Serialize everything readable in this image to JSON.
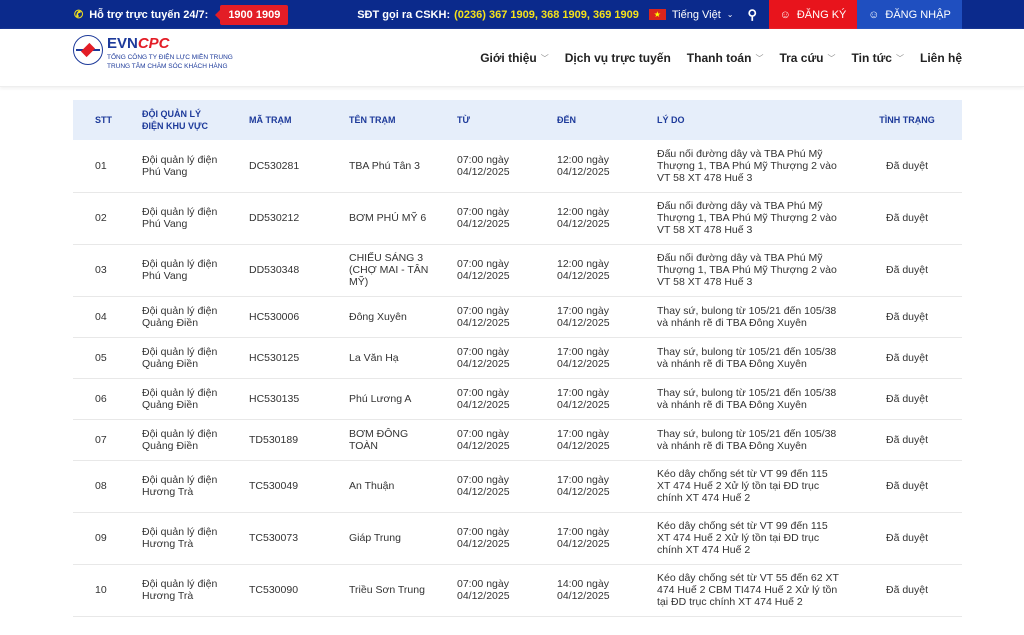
{
  "topbar": {
    "support_label": "Hỗ trợ trực tuyến 24/7:",
    "hotline": "1900 1909",
    "cskh_label": "SĐT gọi ra CSKH:",
    "cskh_numbers": "(0236) 367 1909, 368 1909, 369 1909",
    "language": "Tiếng Việt",
    "register": "ĐĂNG KÝ",
    "login": "ĐĂNG NHẬP"
  },
  "logo": {
    "brand": "EVN",
    "brand2": "CPC",
    "line1": "TỔNG CÔNG TY ĐIỆN LỰC MIỀN TRUNG",
    "line2": "TRUNG TÂM CHĂM SÓC KHÁCH HÀNG"
  },
  "nav": [
    {
      "label": "Giới thiệu",
      "dd": true
    },
    {
      "label": "Dịch vụ trực tuyến",
      "dd": false
    },
    {
      "label": "Thanh toán",
      "dd": true
    },
    {
      "label": "Tra cứu",
      "dd": true
    },
    {
      "label": "Tin tức",
      "dd": true
    },
    {
      "label": "Liên hệ",
      "dd": false
    }
  ],
  "colors": {
    "topbar": "#0b2a8c",
    "register": "#e8141c",
    "login": "#1f4fc0",
    "header_bg": "#e6eefa"
  },
  "table": {
    "headers": [
      "STT",
      "ĐỘI QUẢN LÝ ĐIỆN KHU VỰC",
      "MÃ TRẠM",
      "TÊN TRẠM",
      "TỪ",
      "ĐẾN",
      "LÝ DO",
      "TÌNH TRẠNG"
    ],
    "rows": [
      [
        "01",
        "Đội quản lý điện Phú Vang",
        "DC530281",
        "TBA Phú Tân 3",
        "07:00 ngày 04/12/2025",
        "12:00 ngày 04/12/2025",
        "Đấu nối đường dây và TBA Phú Mỹ Thượng 1, TBA Phú Mỹ Thượng 2 vào VT 58 XT 478 Huế 3",
        "Đã duyệt"
      ],
      [
        "02",
        "Đội quản lý điện Phú Vang",
        "DD530212",
        "BƠM PHÚ MỸ 6",
        "07:00 ngày 04/12/2025",
        "12:00 ngày 04/12/2025",
        "Đấu nối đường dây và TBA Phú Mỹ Thượng 1, TBA Phú Mỹ Thượng 2 vào VT 58 XT 478 Huế 3",
        "Đã duyệt"
      ],
      [
        "03",
        "Đội quản lý điện Phú Vang",
        "DD530348",
        "CHIẾU SÁNG 3 (CHỢ MAI - TÂN MỸ)",
        "07:00 ngày 04/12/2025",
        "12:00 ngày 04/12/2025",
        "Đấu nối đường dây và TBA Phú Mỹ Thượng 1, TBA Phú Mỹ Thượng 2 vào VT 58 XT 478 Huế 3",
        "Đã duyệt"
      ],
      [
        "04",
        "Đội quản lý điện Quảng Điền",
        "HC530006",
        "Đông Xuyên",
        "07:00 ngày 04/12/2025",
        "17:00 ngày 04/12/2025",
        "Thay sứ, bulong từ 105/21 đến 105/38 và nhánh rẽ đi TBA Đông Xuyên",
        "Đã duyệt"
      ],
      [
        "05",
        "Đội quản lý điện Quảng Điền",
        "HC530125",
        "La Văn Hạ",
        "07:00 ngày 04/12/2025",
        "17:00 ngày 04/12/2025",
        "Thay sứ, bulong từ 105/21 đến 105/38 và nhánh rẽ đi TBA Đông Xuyên",
        "Đã duyệt"
      ],
      [
        "06",
        "Đội quản lý điện Quảng Điền",
        "HC530135",
        "Phú Lương A",
        "07:00 ngày 04/12/2025",
        "17:00 ngày 04/12/2025",
        "Thay sứ, bulong từ 105/21 đến 105/38 và nhánh rẽ đi TBA Đông Xuyên",
        "Đã duyệt"
      ],
      [
        "07",
        "Đội quản lý điện Quảng Điền",
        "TD530189",
        "BƠM ĐÔNG TOÀN",
        "07:00 ngày 04/12/2025",
        "17:00 ngày 04/12/2025",
        "Thay sứ, bulong từ 105/21 đến 105/38 và nhánh rẽ đi TBA Đông Xuyên",
        "Đã duyệt"
      ],
      [
        "08",
        "Đội quản lý điện Hương Trà",
        "TC530049",
        "An Thuận",
        "07:00 ngày 04/12/2025",
        "17:00 ngày 04/12/2025",
        "Kéo dây chống sét từ VT 99 đến 115 XT 474 Huế 2 Xử lý tồn tại ĐD trục chính XT 474 Huế 2",
        "Đã duyệt"
      ],
      [
        "09",
        "Đội quản lý điện Hương Trà",
        "TC530073",
        "Giáp Trung",
        "07:00 ngày 04/12/2025",
        "17:00 ngày 04/12/2025",
        "Kéo dây chống sét từ VT 99 đến 115 XT 474 Huế 2 Xử lý tồn tại ĐD trục chính XT 474 Huế 2",
        "Đã duyệt"
      ],
      [
        "10",
        "Đội quản lý điện Hương Trà",
        "TC530090",
        "Triều Sơn Trung",
        "07:00 ngày 04/12/2025",
        "14:00 ngày 04/12/2025",
        "Kéo dây chống sét từ VT 55 đến 62 XT 474 Huế 2 CBM TI474 Huế 2 Xử lý tồn tại ĐD trục chính XT 474 Huế 2",
        "Đã duyệt"
      ]
    ]
  }
}
